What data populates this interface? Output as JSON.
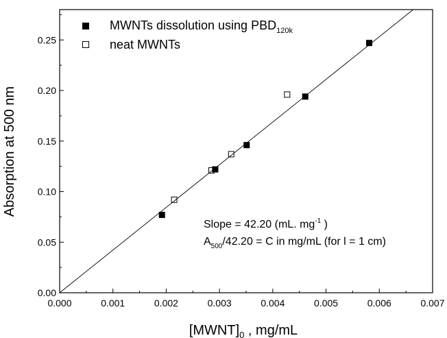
{
  "chart_data": {
    "type": "scatter",
    "xlabel": "[MWNT]",
    "xlabel_sub": "0",
    "xlabel_tail": " , mg/mL",
    "ylabel": "Absorption at 500 nm",
    "xlim": [
      0.0,
      0.007
    ],
    "ylim": [
      0.0,
      0.28
    ],
    "xticks": [
      0.0,
      0.001,
      0.002,
      0.003,
      0.004,
      0.005,
      0.006,
      0.007
    ],
    "xtick_labels": [
      "0.000",
      "0.001",
      "0.002",
      "0.003",
      "0.004",
      "0.005",
      "0.006",
      "0.007"
    ],
    "yticks": [
      0.0,
      0.05,
      0.1,
      0.15,
      0.2,
      0.25
    ],
    "ytick_labels": [
      "0.00",
      "0.05",
      "0.10",
      "0.15",
      "0.20",
      "0.25"
    ],
    "grid": false,
    "legend_position": "top-left",
    "series": [
      {
        "name": "MWNTs dissolution using PBD",
        "name_sub": "120k",
        "marker": "filled-square",
        "color": "#000000",
        "points": [
          {
            "x": 0.00192,
            "y": 0.077
          },
          {
            "x": 0.00292,
            "y": 0.122
          },
          {
            "x": 0.00351,
            "y": 0.146
          },
          {
            "x": 0.00461,
            "y": 0.194
          },
          {
            "x": 0.00581,
            "y": 0.247
          }
        ]
      },
      {
        "name": "neat MWNTs",
        "marker": "open-square",
        "color": "#000000",
        "points": [
          {
            "x": 0.00215,
            "y": 0.092
          },
          {
            "x": 0.00285,
            "y": 0.121
          },
          {
            "x": 0.00322,
            "y": 0.137
          },
          {
            "x": 0.00427,
            "y": 0.196
          }
        ]
      }
    ],
    "fit_line": {
      "slope": 42.2,
      "intercept": 0.0
    },
    "annotations": {
      "slope_text": "Slope = 42.20 (mL. mg",
      "slope_sup": "-1",
      "slope_close": " )",
      "formula_prefix": "A",
      "formula_sub": "500",
      "formula_rest": "/42.20 = C in mg/mL (for l = 1 cm)"
    }
  }
}
